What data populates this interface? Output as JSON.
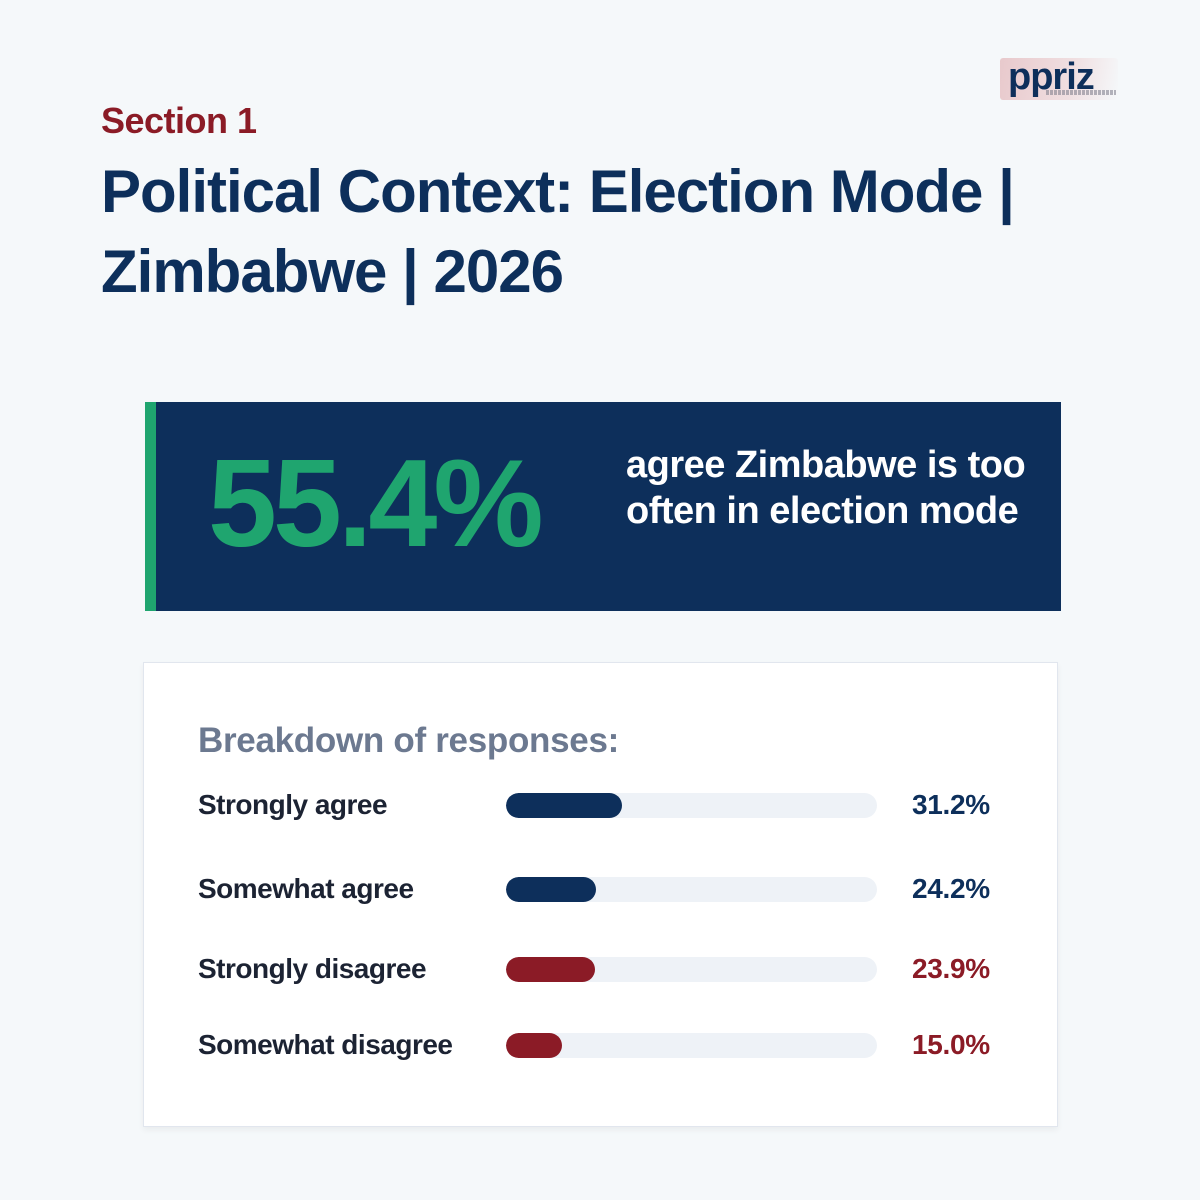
{
  "header": {
    "logo_text": "ppriz",
    "section_label": "Section 1",
    "title": "Political Context: Election Mode | Zimbabwe | 2026"
  },
  "highlight": {
    "value": "55.4%",
    "caption": "agree Zimbabwe is too often in election mode"
  },
  "colors": {
    "navy": "#0d2f5b",
    "green": "#1fa56f",
    "maroon": "#8b1b26",
    "track": "#eef2f7"
  },
  "chart_data": {
    "type": "bar",
    "orientation": "horizontal",
    "title": "Breakdown of responses:",
    "categories": [
      "Strongly agree",
      "Somewhat agree",
      "Strongly disagree",
      "Somewhat disagree"
    ],
    "values": [
      31.2,
      24.2,
      23.9,
      15.0
    ],
    "value_labels": [
      "31.2%",
      "24.2%",
      "23.9%",
      "15.0%"
    ],
    "bar_colors": [
      "#0d2f5b",
      "#0d2f5b",
      "#8b1b26",
      "#8b1b26"
    ],
    "xlim": [
      0,
      100
    ],
    "grid": false,
    "legend": "none"
  }
}
